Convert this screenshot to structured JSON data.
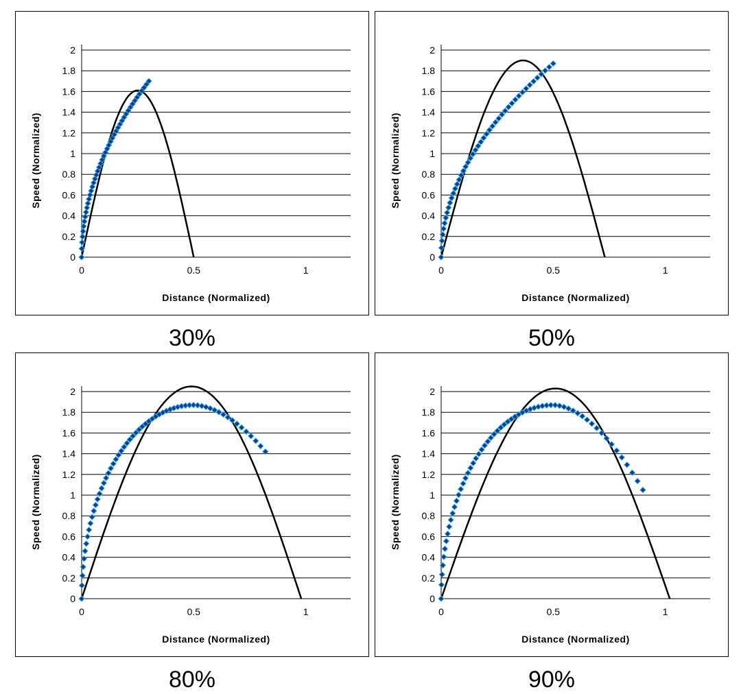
{
  "chart_data": [
    {
      "type": "line",
      "caption": "30%",
      "xlabel": "Distance (Normalized)",
      "ylabel": "Speed (Normalized)",
      "xlim": [
        0,
        1.2
      ],
      "ylim": [
        0,
        2
      ],
      "x_ticks": [
        "0",
        "0.5",
        "1"
      ],
      "y_ticks": [
        "0",
        "0.2",
        "0.4",
        "0.6",
        "0.8",
        "1",
        "1.2",
        "1.4",
        "1.6",
        "1.8",
        "2"
      ],
      "grid": "horizontal",
      "series": [
        {
          "style": "line",
          "color": "#000000",
          "peak": [
            0.25,
            1.61
          ],
          "end": 0.5
        },
        {
          "style": "markers",
          "color": "#1f3f9f",
          "x_end": 0.3,
          "y_end": 1.7
        }
      ]
    },
    {
      "type": "line",
      "caption": "50%",
      "xlabel": "Distance (Normalized)",
      "ylabel": "Speed (Normalized)",
      "xlim": [
        0,
        1.2
      ],
      "ylim": [
        0,
        2
      ],
      "x_ticks": [
        "0",
        "0.5",
        "1"
      ],
      "y_ticks": [
        "0",
        "0.2",
        "0.4",
        "0.6",
        "0.8",
        "1",
        "1.2",
        "1.4",
        "1.6",
        "1.8",
        "2"
      ],
      "grid": "horizontal",
      "series": [
        {
          "style": "line",
          "color": "#000000",
          "peak": [
            0.365,
            1.9
          ],
          "end": 0.73
        },
        {
          "style": "markers",
          "color": "#1f3f9f",
          "x_end": 0.5,
          "y_end": 1.87
        }
      ]
    },
    {
      "type": "line",
      "caption": "80%",
      "xlabel": "Distance (Normalized)",
      "ylabel": "Speed (Normalized)",
      "xlim": [
        0,
        1.2
      ],
      "ylim": [
        0,
        2
      ],
      "x_ticks": [
        "0",
        "0.5",
        "1"
      ],
      "y_ticks": [
        "0",
        "0.2",
        "0.4",
        "0.6",
        "0.8",
        "1",
        "1.2",
        "1.4",
        "1.6",
        "1.8",
        "2"
      ],
      "grid": "horizontal",
      "series": [
        {
          "style": "line",
          "color": "#000000",
          "peak": [
            0.49,
            2.05
          ],
          "end": 0.98
        },
        {
          "style": "markers",
          "color": "#1f3f9f",
          "peak": [
            0.5,
            1.87
          ],
          "x_end": 0.82,
          "y_end": 1.42
        }
      ]
    },
    {
      "type": "line",
      "caption": "90%",
      "xlabel": "Distance (Normalized)",
      "ylabel": "Speed (Normalized)",
      "xlim": [
        0,
        1.2
      ],
      "ylim": [
        0,
        2
      ],
      "x_ticks": [
        "0",
        "0.5",
        "1"
      ],
      "y_ticks": [
        "0",
        "0.2",
        "0.4",
        "0.6",
        "0.8",
        "1",
        "1.2",
        "1.4",
        "1.6",
        "1.8",
        "2"
      ],
      "grid": "horizontal",
      "series": [
        {
          "style": "line",
          "color": "#000000",
          "peak": [
            0.51,
            2.03
          ],
          "end": 1.02
        },
        {
          "style": "markers",
          "color": "#1f3f9f",
          "peak": [
            0.5,
            1.87
          ],
          "x_end": 0.9,
          "y_end": 1.05
        }
      ]
    }
  ]
}
